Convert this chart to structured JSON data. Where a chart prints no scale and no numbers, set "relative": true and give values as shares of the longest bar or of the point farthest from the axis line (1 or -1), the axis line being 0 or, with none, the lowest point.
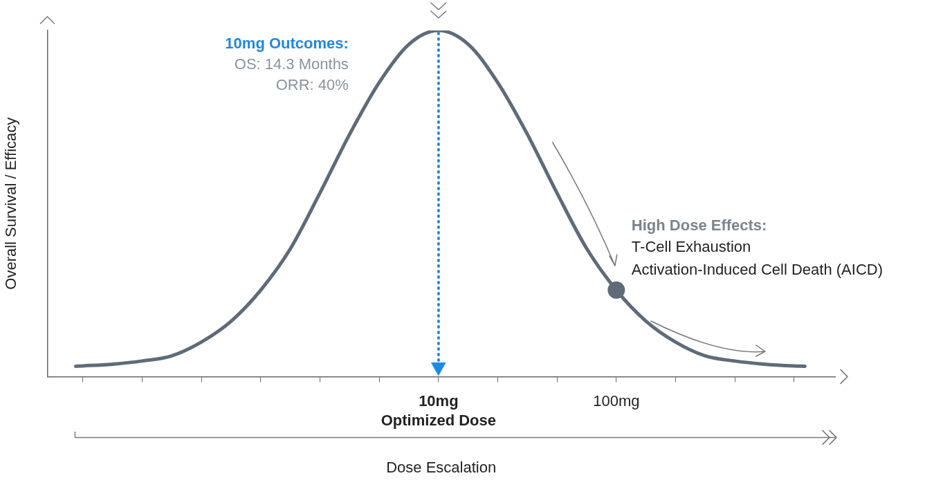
{
  "chart_data": {
    "type": "line",
    "relative": true,
    "ylabel": "Overall Survival / Efficacy",
    "xlabel": "Dose Escalation",
    "log": "x",
    "xlim": [
      0.063,
      1700
    ],
    "xticks": [
      {
        "value": 0.1,
        "label": null
      },
      {
        "value": 0.215,
        "label": null
      },
      {
        "value": 0.464,
        "label": null
      },
      {
        "value": 1,
        "label": null
      },
      {
        "value": 2.15,
        "label": null
      },
      {
        "value": 4.64,
        "label": null
      },
      {
        "value": 10,
        "label": "10mg\nOptimized Dose"
      },
      {
        "value": 21.5,
        "label": null
      },
      {
        "value": 46.4,
        "label": null
      },
      {
        "value": 100,
        "label": "100mg"
      },
      {
        "value": 215,
        "label": null
      },
      {
        "value": 464,
        "label": null
      },
      {
        "value": 1000,
        "label": null
      }
    ],
    "series": [
      {
        "color": "#5f6b78",
        "marker": "none",
        "x": [
          0.091,
          0.1,
          0.147,
          0.215,
          0.316,
          0.464,
          0.681,
          1,
          1.47,
          2.15,
          3.16,
          4.64,
          6.81,
          10,
          14.7,
          21.5,
          31.6,
          46.4,
          68.1,
          100,
          147,
          215,
          316,
          464,
          681,
          1000,
          1150
        ],
        "values": [
          0.03,
          0.031,
          0.036,
          0.045,
          0.06,
          0.1,
          0.16,
          0.25,
          0.37,
          0.53,
          0.7,
          0.85,
          0.96,
          1,
          0.96,
          0.85,
          0.7,
          0.53,
          0.37,
          0.25,
          0.16,
          0.1,
          0.06,
          0.045,
          0.036,
          0.031,
          0.03
        ]
      },
      {
        "color": "#5f6b78",
        "marker": "circle",
        "x": [
          100
        ],
        "values": [
          0.25
        ]
      }
    ],
    "ref_lines": [
      {
        "axis": "x",
        "value": 10,
        "color": "#1e88e5",
        "line_style": "dotted"
      }
    ],
    "annotations": [
      "10mg Outcomes:",
      "OS: 14.3 Months",
      "ORR: 40%",
      "High Dose Effects:",
      "T-Cell Exhaustion",
      "Activation-Induced Cell Death (AICD)"
    ],
    "grid": false,
    "legend": false
  }
}
